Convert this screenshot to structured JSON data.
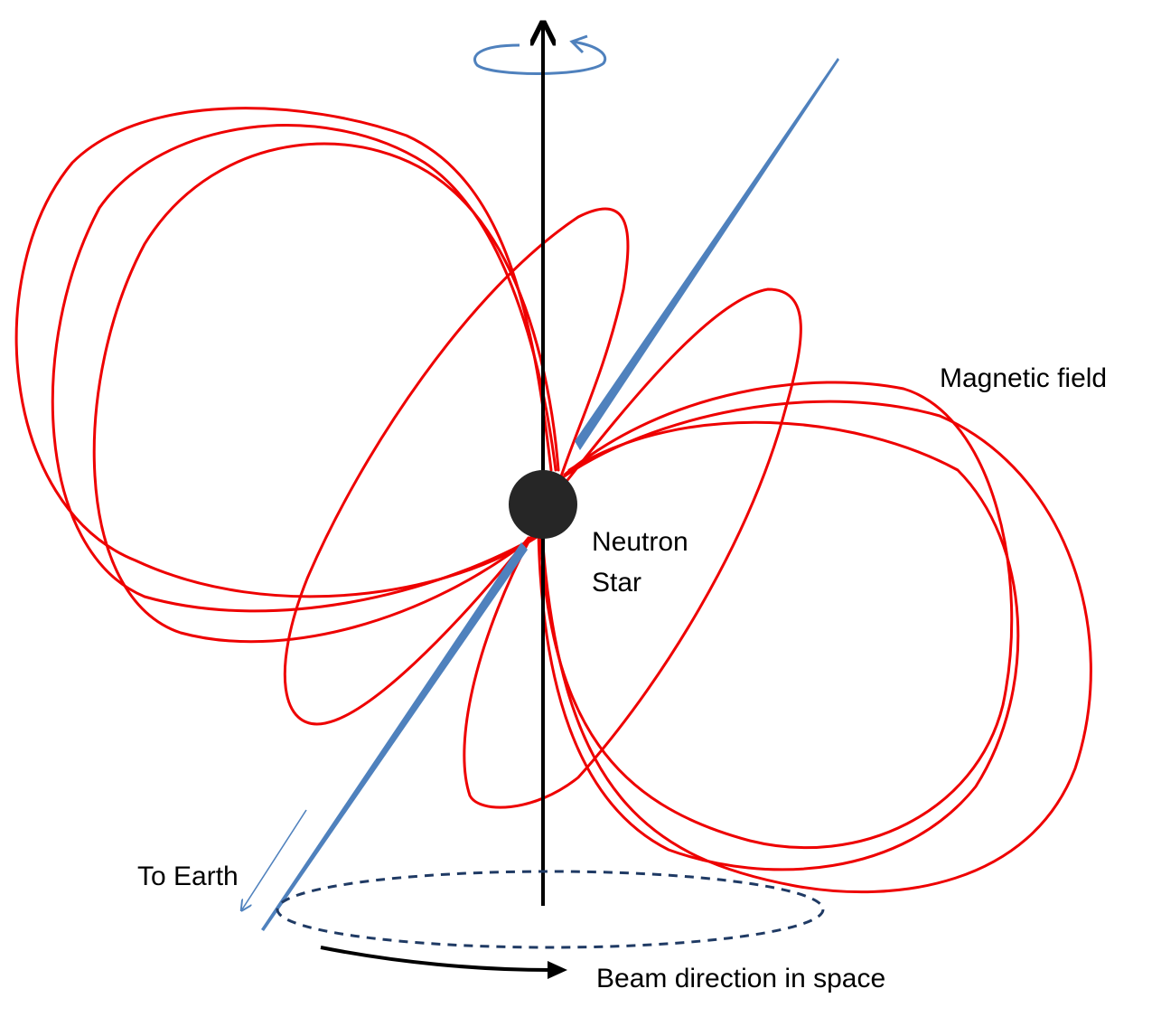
{
  "labels": {
    "magnetic_field": "Magnetic field",
    "neutron": "Neutron",
    "star": "Star",
    "to_earth": "To Earth",
    "beam_direction": "Beam direction in space"
  },
  "colors": {
    "field_lines": "#ee0000",
    "beam": "#4f81bd",
    "axis": "#000000",
    "star": "#262626",
    "orbit": "#1f3a64"
  }
}
